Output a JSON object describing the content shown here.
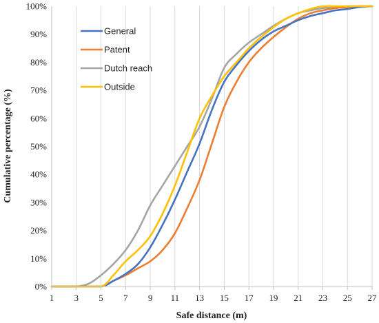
{
  "chart_data": {
    "type": "line",
    "xlabel": "Safe distance (m)",
    "ylabel": "Cumulative percentage (%)",
    "xlim": [
      1,
      27
    ],
    "ylim": [
      0,
      100
    ],
    "xticks": [
      1,
      3,
      5,
      7,
      9,
      11,
      13,
      15,
      17,
      19,
      21,
      23,
      25,
      27
    ],
    "yticks": [
      0,
      10,
      20,
      30,
      40,
      50,
      60,
      70,
      80,
      90,
      100
    ],
    "xtick_labels": [
      "1",
      "3",
      "5",
      "7",
      "9",
      "11",
      "13",
      "15",
      "17",
      "19",
      "21",
      "23",
      "25",
      "27"
    ],
    "ytick_labels": [
      "0%",
      "10%",
      "20%",
      "30%",
      "40%",
      "50%",
      "60%",
      "70%",
      "80%",
      "90%",
      "100%"
    ],
    "grid": "vertical",
    "legend_position": "top-left",
    "series": [
      {
        "name": "General",
        "color": "#4472C4",
        "x": [
          1,
          3,
          5,
          6,
          7,
          8,
          9,
          10,
          11,
          12,
          13,
          14,
          15,
          16,
          17,
          18,
          19,
          20,
          21,
          22,
          23,
          24,
          25,
          26,
          27
        ],
        "y": [
          0,
          0,
          0,
          2,
          4.5,
          8,
          14,
          22,
          31,
          41,
          51,
          63,
          73,
          79,
          84,
          88,
          91,
          93,
          95,
          96.5,
          97.5,
          98.5,
          99,
          99.7,
          100
        ]
      },
      {
        "name": "Patent",
        "color": "#ED7D31",
        "x": [
          1,
          3,
          5,
          6,
          7,
          8,
          9,
          10,
          11,
          12,
          13,
          14,
          15,
          16,
          17,
          18,
          19,
          20,
          21,
          22,
          23,
          24,
          25,
          26,
          27
        ],
        "y": [
          0,
          0,
          0,
          2,
          4,
          6.5,
          9,
          13,
          19,
          28,
          38,
          51,
          64,
          73,
          80,
          85,
          89,
          92.5,
          95.5,
          97.5,
          98.5,
          99.3,
          99.7,
          100,
          100
        ]
      },
      {
        "name": "Dutch reach",
        "color": "#A5A5A5",
        "x": [
          1,
          2,
          3,
          4,
          5,
          6,
          7,
          8,
          9,
          10,
          11,
          12,
          13,
          14,
          15,
          16,
          17,
          18,
          19,
          20,
          21,
          22,
          23,
          24,
          25,
          26,
          27
        ],
        "y": [
          0,
          0,
          0,
          1,
          4,
          8,
          13,
          20,
          29,
          36,
          43,
          50,
          57,
          67,
          78,
          83,
          87,
          90,
          93,
          95.5,
          97.5,
          98.5,
          99.3,
          99.7,
          100,
          100,
          100
        ]
      },
      {
        "name": "Outside",
        "color": "#FFC000",
        "x": [
          1,
          3,
          5,
          6,
          7,
          8,
          9,
          10,
          11,
          12,
          13,
          14,
          15,
          16,
          17,
          18,
          19,
          20,
          21,
          22,
          23,
          24,
          25,
          26,
          27
        ],
        "y": [
          0,
          0,
          0,
          4,
          9,
          13,
          18,
          26,
          36,
          48,
          60,
          68,
          75,
          80,
          85,
          89,
          92.5,
          95.5,
          97.5,
          99,
          100,
          100,
          100,
          100,
          100
        ]
      }
    ]
  }
}
